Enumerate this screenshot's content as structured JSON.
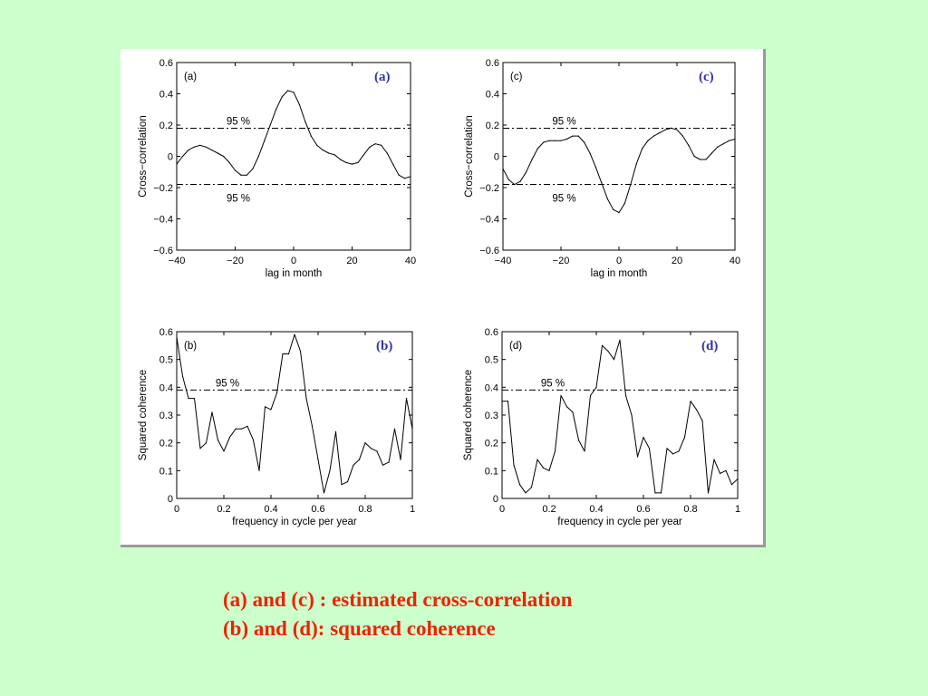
{
  "caption": {
    "line1": "(a) and (c) : estimated cross-correlation",
    "line2": "(b) and (d): squared coherence"
  },
  "colors": {
    "background": "#ccffcc",
    "panel": "#ffffff",
    "caption": "#ee2200",
    "panel_tag": "#3333aa",
    "line": "#000000"
  },
  "chart_data": [
    {
      "id": "a",
      "type": "line",
      "tag": "(a)",
      "inner_label": "(a)",
      "xlabel": "lag in month",
      "ylabel": "Cross−correlation",
      "xlim": [
        -40,
        40
      ],
      "ylim": [
        -0.6,
        0.6
      ],
      "xticks": [
        -40,
        -20,
        0,
        20,
        40
      ],
      "xticklabels": [
        "−40",
        "−20",
        "0",
        "20",
        "40"
      ],
      "yticks": [
        -0.6,
        -0.4,
        -0.2,
        0,
        0.2,
        0.4,
        0.6
      ],
      "yticklabels": [
        "−0.6",
        "−0.4",
        "−0.2",
        "0",
        "0.2",
        "0.4",
        "0.6"
      ],
      "grid": false,
      "thresholds": [
        {
          "y": 0.18,
          "label": "95 %",
          "label_x": -23
        },
        {
          "y": -0.18,
          "label": "95 %",
          "label_x": -23
        }
      ],
      "series": [
        {
          "x": [
            -40,
            -38,
            -36,
            -34,
            -32,
            -30,
            -28,
            -26,
            -24,
            -22,
            -20,
            -18,
            -16,
            -14,
            -12,
            -10,
            -8,
            -6,
            -4,
            -2,
            0,
            2,
            4,
            6,
            8,
            10,
            12,
            14,
            16,
            18,
            20,
            22,
            24,
            26,
            28,
            30,
            32,
            34,
            36,
            38,
            40
          ],
          "values": [
            -0.05,
            0.0,
            0.04,
            0.06,
            0.07,
            0.06,
            0.04,
            0.02,
            0.0,
            -0.04,
            -0.09,
            -0.12,
            -0.12,
            -0.08,
            0.0,
            0.1,
            0.2,
            0.3,
            0.38,
            0.42,
            0.41,
            0.33,
            0.22,
            0.13,
            0.07,
            0.04,
            0.02,
            0.01,
            -0.02,
            -0.04,
            -0.05,
            -0.04,
            0.01,
            0.06,
            0.08,
            0.07,
            0.02,
            -0.05,
            -0.12,
            -0.14,
            -0.13
          ]
        }
      ]
    },
    {
      "id": "c",
      "type": "line",
      "tag": "(c)",
      "inner_label": "(c)",
      "xlabel": "lag in month",
      "ylabel": "Cross−correlation",
      "xlim": [
        -40,
        40
      ],
      "ylim": [
        -0.6,
        0.6
      ],
      "xticks": [
        -40,
        -20,
        0,
        20,
        40
      ],
      "xticklabels": [
        "−40",
        "−20",
        "0",
        "20",
        "40"
      ],
      "yticks": [
        -0.6,
        -0.4,
        -0.2,
        0,
        0.2,
        0.4,
        0.6
      ],
      "yticklabels": [
        "−0.6",
        "−0.4",
        "−0.2",
        "0",
        "0.2",
        "0.4",
        "0.6"
      ],
      "grid": false,
      "thresholds": [
        {
          "y": 0.18,
          "label": "95 %",
          "label_x": -23
        },
        {
          "y": -0.18,
          "label": "95 %",
          "label_x": -23
        }
      ],
      "series": [
        {
          "x": [
            -40,
            -38,
            -36,
            -34,
            -32,
            -30,
            -28,
            -26,
            -24,
            -22,
            -20,
            -18,
            -16,
            -14,
            -12,
            -10,
            -8,
            -6,
            -4,
            -2,
            0,
            2,
            4,
            6,
            8,
            10,
            12,
            14,
            16,
            18,
            20,
            22,
            24,
            26,
            28,
            30,
            32,
            34,
            36,
            38,
            40
          ],
          "values": [
            -0.08,
            -0.15,
            -0.18,
            -0.16,
            -0.1,
            -0.02,
            0.05,
            0.09,
            0.1,
            0.1,
            0.1,
            0.11,
            0.13,
            0.13,
            0.09,
            0.02,
            -0.07,
            -0.17,
            -0.27,
            -0.34,
            -0.36,
            -0.3,
            -0.18,
            -0.05,
            0.05,
            0.1,
            0.13,
            0.15,
            0.17,
            0.18,
            0.17,
            0.13,
            0.07,
            0.0,
            -0.02,
            -0.02,
            0.02,
            0.06,
            0.08,
            0.1,
            0.11
          ]
        }
      ]
    },
    {
      "id": "b",
      "type": "line",
      "tag": "(b)",
      "inner_label": "(b)",
      "xlabel": "frequency in cycle per year",
      "ylabel": "Squared coherence",
      "xlim": [
        0,
        1
      ],
      "ylim": [
        0,
        0.6
      ],
      "xticks": [
        0,
        0.2,
        0.4,
        0.6,
        0.8,
        1
      ],
      "xticklabels": [
        "0",
        "0.2",
        "0.4",
        "0.6",
        "0.8",
        "1"
      ],
      "yticks": [
        0,
        0.1,
        0.2,
        0.3,
        0.4,
        0.5,
        0.6
      ],
      "yticklabels": [
        "0",
        "0.1",
        "0.2",
        "0.3",
        "0.4",
        "0.5",
        "0.6"
      ],
      "grid": false,
      "thresholds": [
        {
          "y": 0.39,
          "label": "95 %",
          "label_x": 0.165
        }
      ],
      "series": [
        {
          "x": [
            0,
            0.025,
            0.05,
            0.075,
            0.1,
            0.125,
            0.15,
            0.175,
            0.2,
            0.225,
            0.25,
            0.275,
            0.3,
            0.325,
            0.35,
            0.375,
            0.4,
            0.425,
            0.45,
            0.475,
            0.5,
            0.525,
            0.55,
            0.575,
            0.6,
            0.625,
            0.65,
            0.675,
            0.7,
            0.725,
            0.75,
            0.775,
            0.8,
            0.825,
            0.85,
            0.875,
            0.9,
            0.925,
            0.95,
            0.975,
            1
          ],
          "values": [
            0.58,
            0.44,
            0.36,
            0.36,
            0.18,
            0.2,
            0.31,
            0.21,
            0.17,
            0.22,
            0.25,
            0.25,
            0.26,
            0.21,
            0.1,
            0.33,
            0.32,
            0.38,
            0.52,
            0.52,
            0.59,
            0.53,
            0.36,
            0.26,
            0.14,
            0.02,
            0.1,
            0.24,
            0.05,
            0.06,
            0.12,
            0.14,
            0.2,
            0.18,
            0.17,
            0.12,
            0.13,
            0.25,
            0.14,
            0.36,
            0.25
          ]
        }
      ]
    },
    {
      "id": "d",
      "type": "line",
      "tag": "(d)",
      "inner_label": "(d)",
      "xlabel": "frequency in cycle per year",
      "ylabel": "Squared coherence",
      "xlim": [
        0,
        1
      ],
      "ylim": [
        0,
        0.6
      ],
      "xticks": [
        0,
        0.2,
        0.4,
        0.6,
        0.8,
        1
      ],
      "xticklabels": [
        "0",
        "0.2",
        "0.4",
        "0.6",
        "0.8",
        "1"
      ],
      "yticks": [
        0,
        0.1,
        0.2,
        0.3,
        0.4,
        0.5,
        0.6
      ],
      "yticklabels": [
        "0",
        "0.1",
        "0.2",
        "0.3",
        "0.4",
        "0.5",
        "0.6"
      ],
      "grid": false,
      "thresholds": [
        {
          "y": 0.39,
          "label": "95 %",
          "label_x": 0.165
        }
      ],
      "series": [
        {
          "x": [
            0,
            0.025,
            0.05,
            0.075,
            0.1,
            0.125,
            0.15,
            0.175,
            0.2,
            0.225,
            0.25,
            0.275,
            0.3,
            0.325,
            0.35,
            0.375,
            0.4,
            0.425,
            0.45,
            0.475,
            0.5,
            0.525,
            0.55,
            0.575,
            0.6,
            0.625,
            0.65,
            0.675,
            0.7,
            0.725,
            0.75,
            0.775,
            0.8,
            0.825,
            0.85,
            0.875,
            0.9,
            0.925,
            0.95,
            0.975,
            1
          ],
          "values": [
            0.35,
            0.35,
            0.12,
            0.05,
            0.02,
            0.04,
            0.14,
            0.11,
            0.1,
            0.17,
            0.37,
            0.33,
            0.31,
            0.21,
            0.17,
            0.37,
            0.4,
            0.55,
            0.53,
            0.5,
            0.57,
            0.37,
            0.3,
            0.15,
            0.22,
            0.18,
            0.02,
            0.02,
            0.18,
            0.16,
            0.17,
            0.22,
            0.35,
            0.32,
            0.28,
            0.02,
            0.14,
            0.09,
            0.1,
            0.05,
            0.07
          ]
        }
      ]
    }
  ]
}
